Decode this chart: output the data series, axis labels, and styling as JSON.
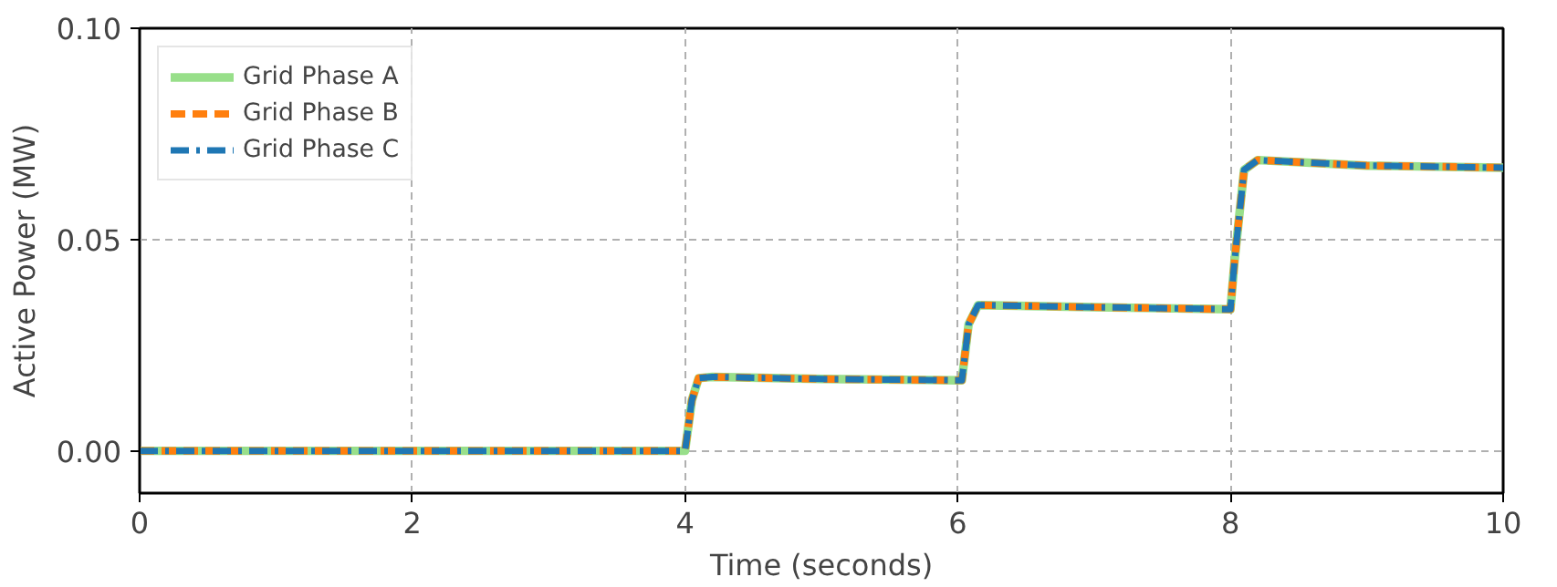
{
  "chart_data": {
    "type": "line",
    "xlabel": "Time (seconds)",
    "ylabel": "Active Power (MW)",
    "x": [
      0,
      4.0,
      4.05,
      4.1,
      4.2,
      5,
      6,
      6.03,
      6.08,
      6.15,
      7,
      8,
      8.03,
      8.1,
      8.2,
      9,
      10
    ],
    "series": [
      {
        "name": "Grid Phase A",
        "color": "#98df8a",
        "line_style": "solid",
        "values": [
          0,
          0,
          0.012,
          0.0172,
          0.0175,
          0.017,
          0.0167,
          0.0167,
          0.03,
          0.0345,
          0.034,
          0.0335,
          0.045,
          0.0665,
          0.0688,
          0.0675,
          0.067
        ]
      },
      {
        "name": "Grid Phase B",
        "color": "#ff7f0e",
        "line_style": "dashed",
        "values": [
          0,
          0,
          0.012,
          0.0172,
          0.0175,
          0.017,
          0.0167,
          0.0167,
          0.03,
          0.0345,
          0.034,
          0.0335,
          0.045,
          0.0665,
          0.0688,
          0.0675,
          0.067
        ]
      },
      {
        "name": "Grid Phase C",
        "color": "#1f77b4",
        "line_style": "dashdot",
        "values": [
          0,
          0,
          0.012,
          0.0172,
          0.0175,
          0.017,
          0.0167,
          0.0167,
          0.03,
          0.0345,
          0.034,
          0.0335,
          0.045,
          0.0665,
          0.0688,
          0.0675,
          0.067
        ]
      }
    ],
    "xlim": [
      0,
      10
    ],
    "xticks": [
      0,
      2,
      4,
      6,
      8,
      10
    ],
    "ylim": [
      -0.01,
      0.1
    ],
    "yticks": [
      {
        "value": 0,
        "label": "0.00"
      },
      {
        "value": 0.05,
        "label": "0.05"
      },
      {
        "value": 0.1,
        "label": "0.10"
      }
    ],
    "grid": true,
    "legend": "top left"
  }
}
